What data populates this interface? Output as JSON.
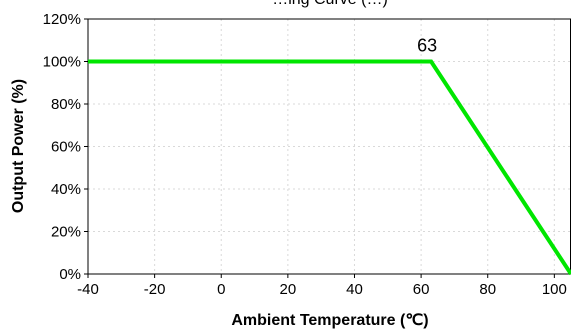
{
  "chart_data": {
    "type": "line",
    "title": "…ing Curve (…)",
    "xlabel": "Ambient Temperature (℃)",
    "ylabel": "Output Power (%)",
    "xlim": [
      -40,
      105
    ],
    "ylim": [
      0,
      120
    ],
    "x_ticks": [
      -40,
      -20,
      0,
      20,
      40,
      60,
      80,
      100
    ],
    "y_ticks": [
      0,
      20,
      40,
      60,
      80,
      100,
      120
    ],
    "y_tick_suffix": "%",
    "grid": true,
    "series": [
      {
        "color": "#00e600",
        "points": [
          [
            -40,
            100
          ],
          [
            63,
            100
          ],
          [
            105,
            0
          ]
        ]
      }
    ],
    "annotations": [
      {
        "text": "63",
        "x": 63,
        "y": 100
      }
    ]
  }
}
